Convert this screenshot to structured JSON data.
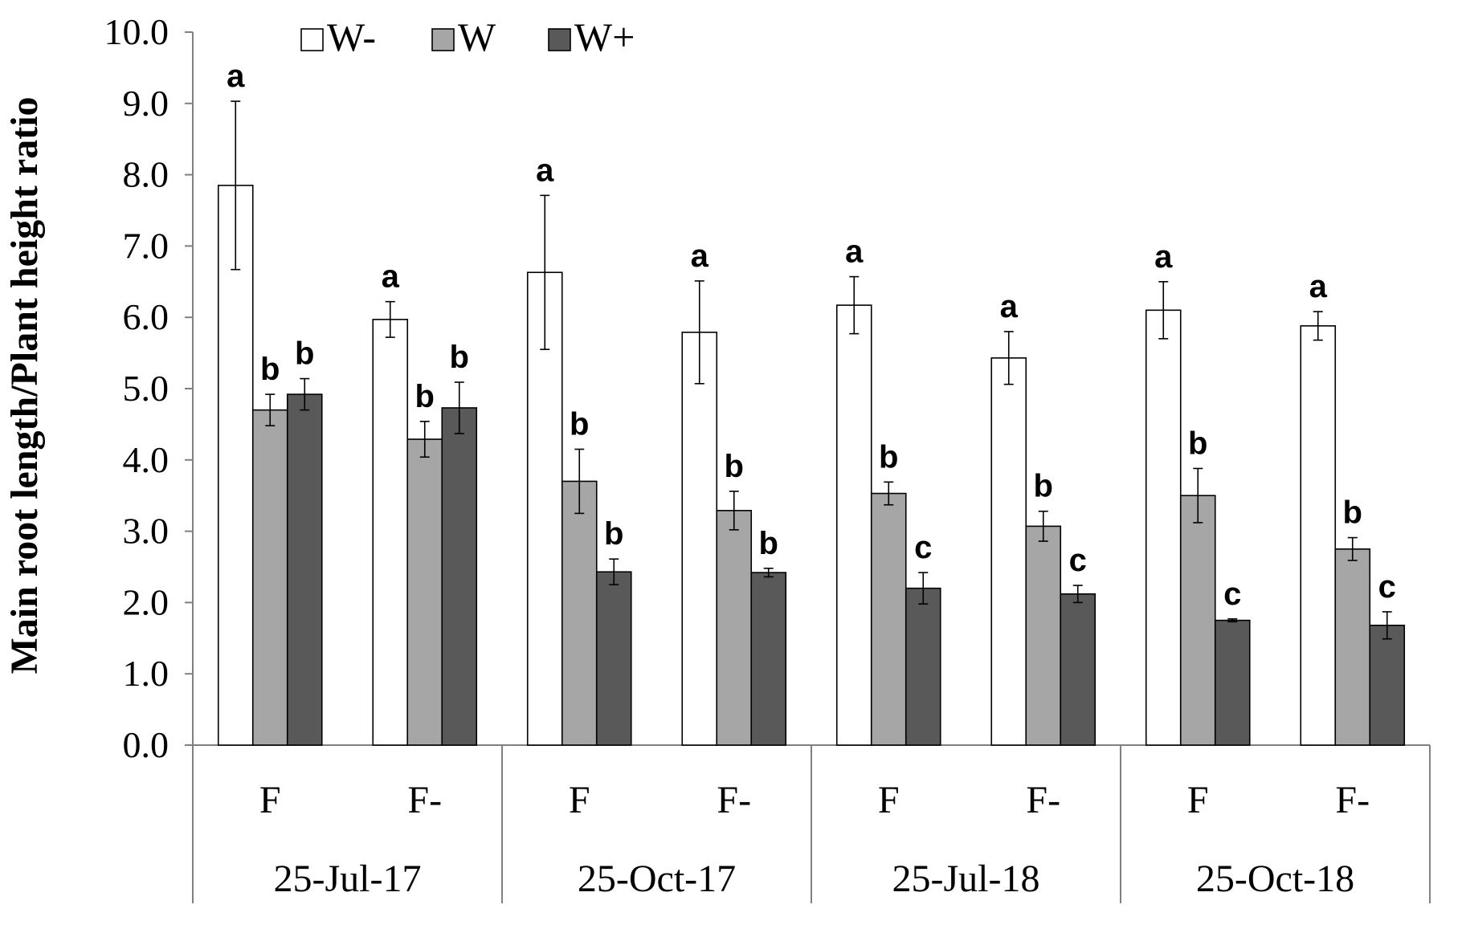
{
  "chart_data": {
    "type": "bar",
    "title": "",
    "xlabel": "",
    "ylabel": "Main root length/Plant height ratio",
    "ylim": [
      0,
      10
    ],
    "ytick_labels": [
      "0.0",
      "1.0",
      "2.0",
      "3.0",
      "4.0",
      "5.0",
      "6.0",
      "7.0",
      "8.0",
      "9.0",
      "10.0"
    ],
    "date_groups": [
      "25-Jul-17",
      "25-Oct-17",
      "25-Jul-18",
      "25-Oct-18"
    ],
    "categories": [
      "F",
      "F-",
      "F",
      "F-",
      "F",
      "F-",
      "F",
      "F-"
    ],
    "legend_position": "top-left",
    "series": [
      {
        "name": "W-",
        "color": "#ffffff",
        "values": [
          7.85,
          5.97,
          6.63,
          5.79,
          6.17,
          5.43,
          6.1,
          5.88
        ],
        "errors": [
          1.18,
          0.25,
          1.08,
          0.72,
          0.4,
          0.37,
          0.4,
          0.2
        ],
        "letters": [
          "a",
          "a",
          "a",
          "a",
          "a",
          "a",
          "a",
          "a"
        ]
      },
      {
        "name": "W",
        "color": "#a6a6a6",
        "values": [
          4.7,
          4.29,
          3.7,
          3.29,
          3.53,
          3.07,
          3.5,
          2.75
        ],
        "errors": [
          0.22,
          0.25,
          0.45,
          0.27,
          0.16,
          0.21,
          0.38,
          0.16
        ],
        "letters": [
          "b",
          "b",
          "b",
          "b",
          "b",
          "b",
          "b",
          "b"
        ]
      },
      {
        "name": "W+",
        "color": "#595959",
        "values": [
          4.92,
          4.73,
          2.43,
          2.42,
          2.2,
          2.12,
          1.75,
          1.68
        ],
        "errors": [
          0.22,
          0.36,
          0.18,
          0.06,
          0.22,
          0.12,
          0.02,
          0.19
        ],
        "letters": [
          "b",
          "b",
          "b",
          "b",
          "c",
          "c",
          "c",
          "c"
        ]
      }
    ]
  }
}
